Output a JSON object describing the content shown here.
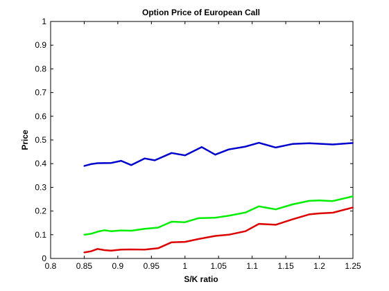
{
  "chart_data": {
    "type": "line",
    "title": "Option Price of European Call",
    "xlabel": "S/K ratio",
    "ylabel": "Price",
    "xlim": [
      0.8,
      1.25
    ],
    "ylim": [
      0,
      1
    ],
    "xticks": [
      0.8,
      0.85,
      0.9,
      0.95,
      1,
      1.05,
      1.1,
      1.15,
      1.2,
      1.25
    ],
    "xtick_labels": [
      "0.8",
      "0.85",
      "0.9",
      "0.95",
      "1",
      "1.05",
      "1.1",
      "1.15",
      "1.2",
      "1.25"
    ],
    "yticks": [
      0,
      0.1,
      0.2,
      0.3,
      0.4,
      0.5,
      0.6,
      0.7,
      0.8,
      0.9,
      1
    ],
    "ytick_labels": [
      "0",
      "0.1",
      "0.2",
      "0.3",
      "0.4",
      "0.5",
      "0.6",
      "0.7",
      "0.8",
      "0.9",
      "1"
    ],
    "grid": false,
    "legend": "none",
    "series": [
      {
        "color": "#0000cc",
        "x": [
          0.85,
          0.86,
          0.87,
          0.89,
          0.905,
          0.92,
          0.94,
          0.955,
          0.98,
          1,
          1.025,
          1.045,
          1.065,
          1.09,
          1.11,
          1.135,
          1.16,
          1.185,
          1.22,
          1.25
        ],
        "y": [
          0.39,
          0.398,
          0.402,
          0.403,
          0.412,
          0.394,
          0.422,
          0.414,
          0.445,
          0.435,
          0.47,
          0.438,
          0.46,
          0.472,
          0.488,
          0.468,
          0.483,
          0.486,
          0.481,
          0.487
        ]
      },
      {
        "color": "#00ee00",
        "x": [
          0.85,
          0.86,
          0.87,
          0.88,
          0.89,
          0.905,
          0.92,
          0.94,
          0.96,
          0.98,
          1,
          1.02,
          1.045,
          1.065,
          1.09,
          1.11,
          1.135,
          1.16,
          1.185,
          1.2,
          1.22,
          1.25
        ],
        "y": [
          0.1,
          0.104,
          0.113,
          0.119,
          0.115,
          0.118,
          0.117,
          0.125,
          0.13,
          0.155,
          0.153,
          0.17,
          0.172,
          0.18,
          0.194,
          0.22,
          0.207,
          0.228,
          0.243,
          0.245,
          0.242,
          0.262
        ]
      },
      {
        "color": "#dd0000",
        "x": [
          0.85,
          0.86,
          0.87,
          0.88,
          0.89,
          0.905,
          0.92,
          0.94,
          0.96,
          0.98,
          1,
          1.02,
          1.045,
          1.065,
          1.09,
          1.11,
          1.135,
          1.16,
          1.185,
          1.2,
          1.22,
          1.25
        ],
        "y": [
          0.025,
          0.03,
          0.04,
          0.035,
          0.033,
          0.037,
          0.038,
          0.037,
          0.043,
          0.068,
          0.07,
          0.082,
          0.095,
          0.1,
          0.115,
          0.146,
          0.142,
          0.165,
          0.186,
          0.19,
          0.193,
          0.215
        ]
      }
    ]
  }
}
